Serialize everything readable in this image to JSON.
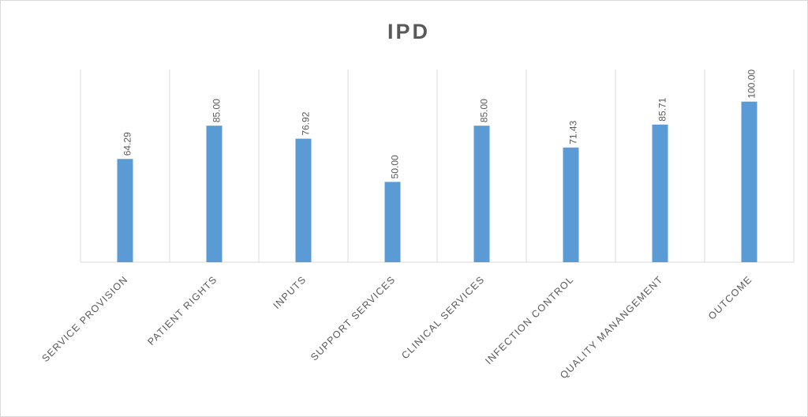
{
  "chart_data": {
    "type": "bar",
    "title": "IPD",
    "categories": [
      "SERVICE PROVISION",
      "PATIENT RIGHTS",
      "INPUTS",
      "SUPPORT SERVICES",
      "CLINICAL SERVICES",
      "INFECTION CONTROL",
      "QUALITY MANANGEMENT",
      "OUTCOME"
    ],
    "values": [
      64.29,
      85,
      76.92,
      50,
      85,
      71.43,
      85.71,
      100
    ],
    "value_labels": [
      "64.29",
      "85.00",
      "76.92",
      "50.00",
      "85.00",
      "71.43",
      "85.71",
      "100.00"
    ],
    "color": "#5b9bd5",
    "ylim": [
      0,
      120
    ],
    "grid": true
  }
}
